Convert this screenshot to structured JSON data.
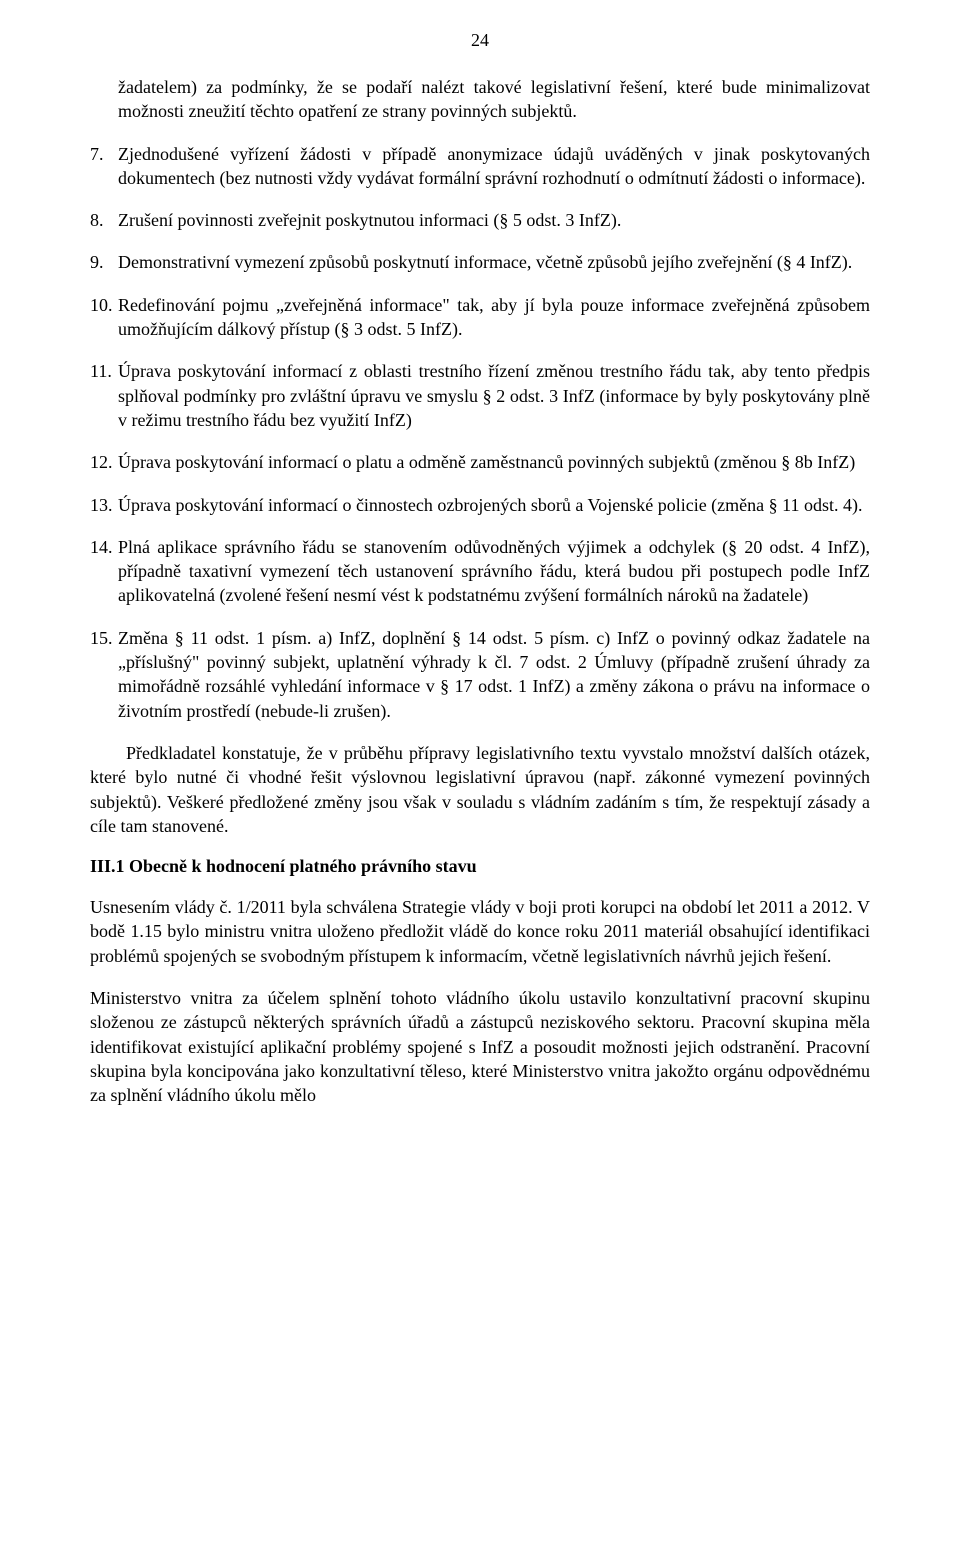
{
  "page_number": "24",
  "continuation_text": "žadatelem) za podmínky, že se podaří nalézt takové legislativní řešení, které bude minimalizovat možnosti zneužití těchto opatření ze strany povinných subjektů.",
  "items": [
    {
      "num": "7.",
      "text": "Zjednodušené vyřízení žádosti v případě anonymizace údajů uváděných v jinak poskytovaných dokumentech (bez nutnosti vždy vydávat formální správní rozhodnutí o odmítnutí žádosti o informace)."
    },
    {
      "num": "8.",
      "text": "Zrušení povinnosti zveřejnit poskytnutou informaci (§ 5 odst. 3 InfZ)."
    },
    {
      "num": "9.",
      "text": "Demonstrativní vymezení způsobů poskytnutí informace, včetně způsobů jejího zveřejnění (§ 4 InfZ)."
    },
    {
      "num": "10.",
      "text": "Redefinování pojmu „zveřejněná informace\" tak, aby jí byla pouze informace zveřejněná způsobem umožňujícím dálkový přístup (§ 3 odst. 5 InfZ)."
    },
    {
      "num": "11.",
      "text": "Úprava poskytování informací z oblasti trestního řízení změnou trestního řádu tak, aby tento předpis splňoval podmínky pro zvláštní úpravu ve smyslu § 2 odst. 3 InfZ (informace by byly poskytovány plně v režimu trestního řádu bez využití InfZ)"
    },
    {
      "num": "12.",
      "text": "Úprava poskytování informací o platu a odměně zaměstnanců povinných subjektů (změnou § 8b InfZ)"
    },
    {
      "num": "13.",
      "text": "Úprava poskytování informací o činnostech ozbrojených sborů a Vojenské policie (změna § 11 odst. 4)."
    },
    {
      "num": "14.",
      "text": "Plná aplikace správního řádu se stanovením odůvodněných výjimek a odchylek (§ 20 odst. 4 InfZ), případně taxativní vymezení těch ustanovení správního řádu, která budou při postupech podle InfZ aplikovatelná (zvolené řešení nesmí vést k podstatnému zvýšení formálních nároků na žadatele)"
    },
    {
      "num": "15.",
      "text": "Změna § 11 odst. 1 písm. a) InfZ, doplnění § 14 odst. 5 písm. c) InfZ o povinný odkaz žadatele na „příslušný\" povinný subjekt, uplatnění výhrady k čl. 7 odst. 2 Úmluvy (případně zrušení úhrady za mimořádně rozsáhlé vyhledání informace v § 17 odst. 1 InfZ) a změny zákona o právu na informace o životním prostředí (nebude-li zrušen)."
    }
  ],
  "after_list_para": "Předkladatel konstatuje, že v průběhu přípravy legislativního textu vyvstalo množství dalších otázek, které bylo nutné či vhodné řešit výslovnou legislativní úpravou (např. zákonné vymezení povinných subjektů). Veškeré předložené změny jsou však v souladu s vládním zadáním s tím, že respektují zásady a cíle tam stanovené.",
  "section_heading": "III.1 Obecně k hodnocení platného právního stavu",
  "body_paras": [
    "Usnesením vlády č. 1/2011 byla schválena Strategie vlády v boji proti korupci na období let 2011 a 2012. V bodě 1.15 bylo ministru vnitra uloženo předložit vládě do konce roku 2011 materiál obsahující identifikaci problémů spojených se svobodným přístupem k informacím, včetně legislativních návrhů jejich řešení.",
    "Ministerstvo vnitra za účelem splnění tohoto vládního úkolu ustavilo konzultativní pracovní skupinu složenou ze zástupců některých správních úřadů a zástupců neziskového sektoru. Pracovní skupina měla identifikovat existující aplikační problémy spojené s InfZ a posoudit možnosti jejich odstranění. Pracovní skupina byla koncipována jako konzultativní těleso, které Ministerstvo vnitra jakožto orgánu odpovědnému za splnění vládního úkolu mělo"
  ]
}
